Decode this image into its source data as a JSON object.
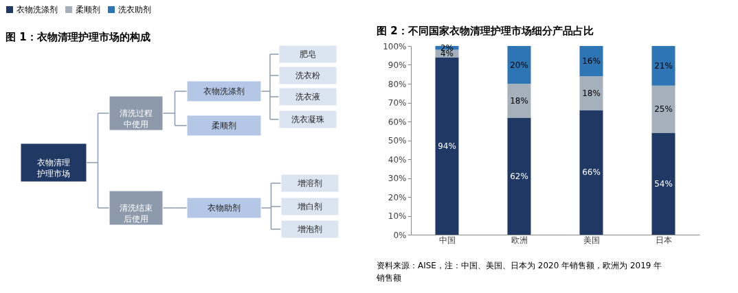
{
  "chart_data": [
    {
      "type": "other",
      "title": "图 1：衣物清理护理市场的构成",
      "annotations": [
        "衣物清理护理市场",
        "清洗过程中使用",
        "清洗结束后使用",
        "衣物洗涤剂",
        "柔顺剂",
        "衣物助剂",
        "肥皂",
        "洗衣粉",
        "洗衣液",
        "洗衣凝珠",
        "增溶剂",
        "增白剂",
        "增泡剂"
      ]
    },
    {
      "type": "bar",
      "stacked": true,
      "title": "图 2：不同国家衣物清理护理市场细分产品占比",
      "categories": [
        "中国",
        "欧洲",
        "美国",
        "日本"
      ],
      "series": [
        {
          "name": "衣物洗涤剂",
          "color": "#1f3864",
          "values": [
            94,
            62,
            66,
            54
          ],
          "value_labels": [
            "94%",
            "62%",
            "66%",
            "54%"
          ]
        },
        {
          "name": "柔顺剂",
          "color": "#a5b0bd",
          "values": [
            4,
            18,
            18,
            25
          ],
          "value_labels": [
            "4%",
            "18%",
            "18%",
            "25%"
          ]
        },
        {
          "name": "洗衣助剂",
          "color": "#2e75b6",
          "values": [
            2,
            20,
            16,
            21
          ],
          "value_labels": [
            "2%",
            "20%",
            "16%",
            "21%"
          ]
        }
      ],
      "ylim": [
        0,
        100
      ],
      "yticks": [
        {
          "value": 0,
          "label": "0%"
        },
        {
          "value": 10,
          "label": "10%"
        },
        {
          "value": 20,
          "label": "20%"
        },
        {
          "value": 30,
          "label": "30%"
        },
        {
          "value": 40,
          "label": "40%"
        },
        {
          "value": 50,
          "label": "50%"
        },
        {
          "value": 60,
          "label": "60%"
        },
        {
          "value": 70,
          "label": "70%"
        },
        {
          "value": 80,
          "label": "80%"
        },
        {
          "value": 90,
          "label": "90%"
        },
        {
          "value": 100,
          "label": "100%"
        }
      ],
      "legend": "top",
      "grid": false,
      "annotations": [
        "资料来源：AISE，注：中国、美国、日本为 2020 年销售额，欧洲为 2019 年销售额"
      ]
    }
  ]
}
